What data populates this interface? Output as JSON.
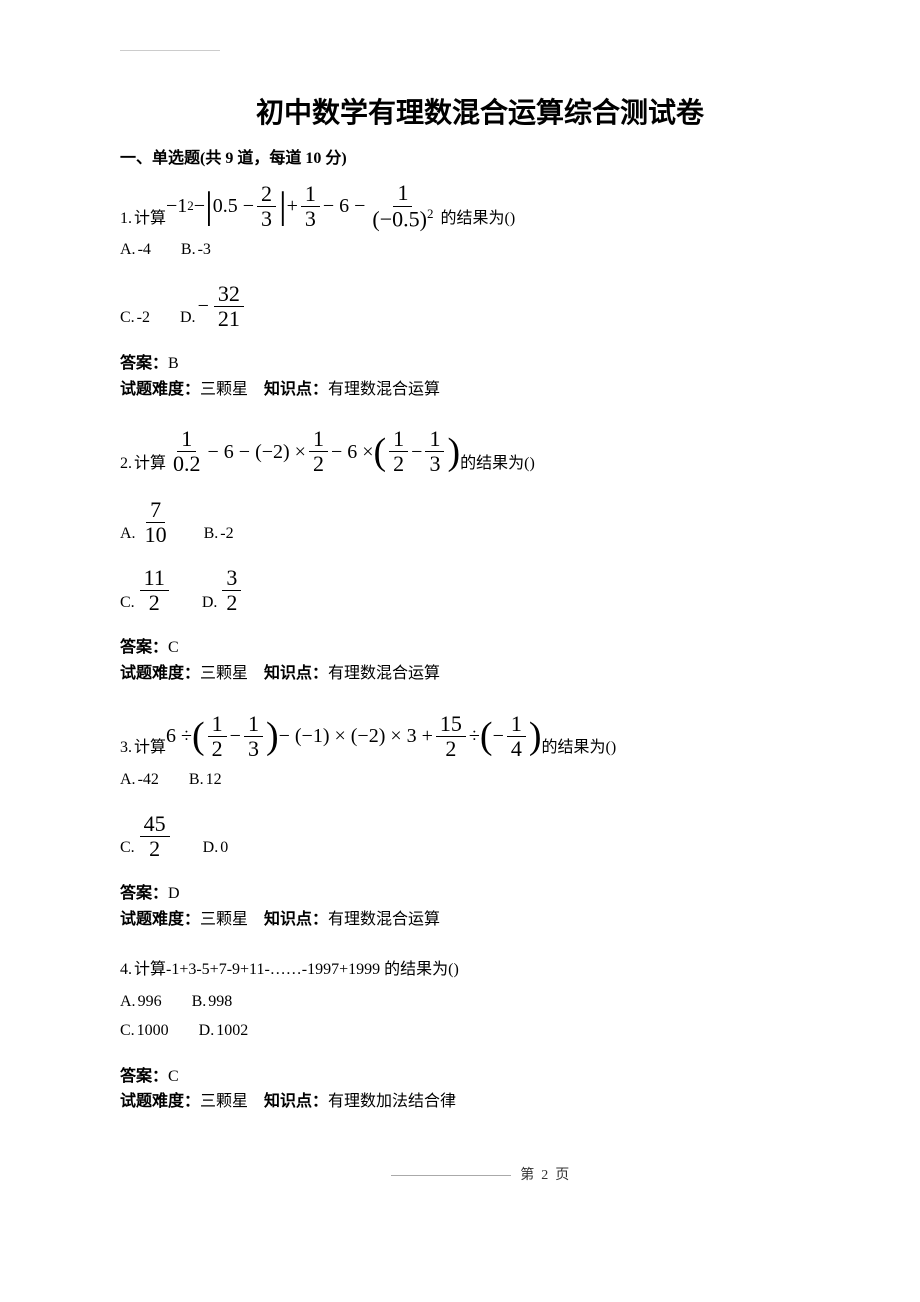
{
  "title": "初中数学有理数混合运算综合测试卷",
  "section_header": "一、单选题(共 9 道，每道 10 分)",
  "questions": [
    {
      "num": "1.",
      "prefix": "计算",
      "suffix": "的结果为()",
      "options": {
        "A": "-4",
        "B": "-3",
        "C": "-2",
        "D_frac_num": "32",
        "D_frac_den": "21"
      },
      "answer": "B",
      "difficulty": "三颗星",
      "knowledge": "有理数混合运算"
    },
    {
      "num": "2.",
      "prefix": "计算",
      "suffix": "的结果为()",
      "options": {
        "A_frac_num": "7",
        "A_frac_den": "10",
        "B": "-2",
        "C_frac_num": "11",
        "C_frac_den": "2",
        "D_frac_num": "3",
        "D_frac_den": "2"
      },
      "answer": "C",
      "difficulty": "三颗星",
      "knowledge": "有理数混合运算"
    },
    {
      "num": "3.",
      "prefix": "计算",
      "suffix": "的结果为()",
      "options": {
        "A": "-42",
        "B": "12",
        "C_frac_num": "45",
        "C_frac_den": "2",
        "D": "0"
      },
      "answer": "D",
      "difficulty": "三颗星",
      "knowledge": "有理数混合运算"
    },
    {
      "num": "4.",
      "text": "计算-1+3-5+7-9+11-……-1997+1999 的结果为()",
      "options": {
        "A": "996",
        "B": "998",
        "C": "1000",
        "D": "1002"
      },
      "answer": "C",
      "difficulty": "三颗星",
      "knowledge": "有理数加法结合律"
    }
  ],
  "labels": {
    "answer": "答案：",
    "difficulty": "试题难度：",
    "knowledge": "知识点：",
    "A": "A.",
    "B": "B.",
    "C": "C.",
    "D": "D."
  },
  "formulas": {
    "q1": {
      "neg1sq": "−1",
      "sq": "2",
      "minus": " − ",
      "abs_inner_left": "0.5 − ",
      "f1_num": "2",
      "f1_den": "3",
      "plus": " + ",
      "f2_num": "1",
      "f2_den": "3",
      "minus6": " − 6 − ",
      "f3_num": "1",
      "f3_den_base": "(−0.5)",
      "f3_den_exp": "2"
    },
    "q2": {
      "f1_num": "1",
      "f1_den": "0.2",
      "minus6": " − 6 − (−2) × ",
      "f2_num": "1",
      "f2_den": "2",
      "minus6x": " − 6 × ",
      "f3_num": "1",
      "f3_den": "2",
      "minus": " − ",
      "f4_num": "1",
      "f4_den": "3"
    },
    "q3": {
      "six_div": "6 ÷ ",
      "f1_num": "1",
      "f1_den": "2",
      "minus": " − ",
      "f2_num": "1",
      "f2_den": "3",
      "mid": " − (−1) × (−2) × 3 + ",
      "f3_num": "15",
      "f3_den": "2",
      "div": " ÷ ",
      "neg": "−",
      "f4_num": "1",
      "f4_den": "4"
    }
  },
  "footer": {
    "page_label": "第",
    "page_num": "2",
    "page_unit": "页"
  }
}
